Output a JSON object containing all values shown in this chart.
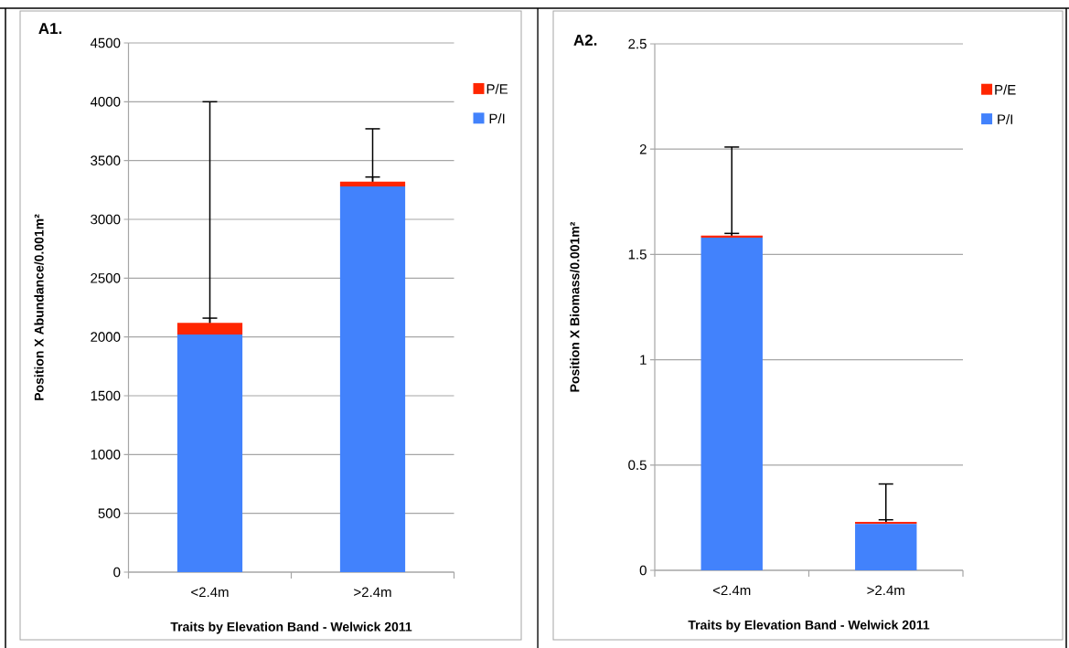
{
  "chart_data": [
    {
      "type": "bar",
      "title": "A1.",
      "xlabel": "Traits by Elevation Band - Welwick 2011",
      "ylabel": "Position X Abundance/0.001m²",
      "categories": [
        "<2.4m",
        ">2.4m"
      ],
      "stacked": true,
      "ylim": [
        0,
        4500
      ],
      "yticks": [
        0,
        500,
        1000,
        1500,
        2000,
        2500,
        3000,
        3500,
        4000,
        4500
      ],
      "grid": "y",
      "legend": "right",
      "series": [
        {
          "name": "P/I",
          "color": "#4282fc",
          "values": [
            2020,
            3280
          ],
          "errors": [
            [
              2020,
              4000
            ],
            [
              3280,
              3770
            ]
          ]
        },
        {
          "name": "P/E",
          "color": "#ff2600",
          "values": [
            100,
            40
          ],
          "errors": [
            [
              2120,
              2160
            ],
            [
              3320,
              3360
            ]
          ]
        }
      ]
    },
    {
      "type": "bar",
      "title": "A2.",
      "xlabel": "Traits by Elevation Band - Welwick 2011",
      "ylabel": "Position X Biomass/0.001m²",
      "categories": [
        "<2.4m",
        ">2.4m"
      ],
      "stacked": true,
      "ylim": [
        0,
        2.5
      ],
      "yticks": [
        0,
        0.5,
        1,
        1.5,
        2,
        2.5
      ],
      "grid": "y",
      "legend": "right",
      "series": [
        {
          "name": "P/I",
          "color": "#4282fc",
          "values": [
            1.58,
            0.22
          ],
          "errors": [
            [
              1.58,
              2.01
            ],
            [
              0.22,
              0.41
            ]
          ]
        },
        {
          "name": "P/E",
          "color": "#ff2600",
          "values": [
            0.01,
            0.01
          ],
          "errors": [
            [
              1.59,
              1.6
            ],
            [
              0.23,
              0.24
            ]
          ]
        }
      ]
    }
  ]
}
